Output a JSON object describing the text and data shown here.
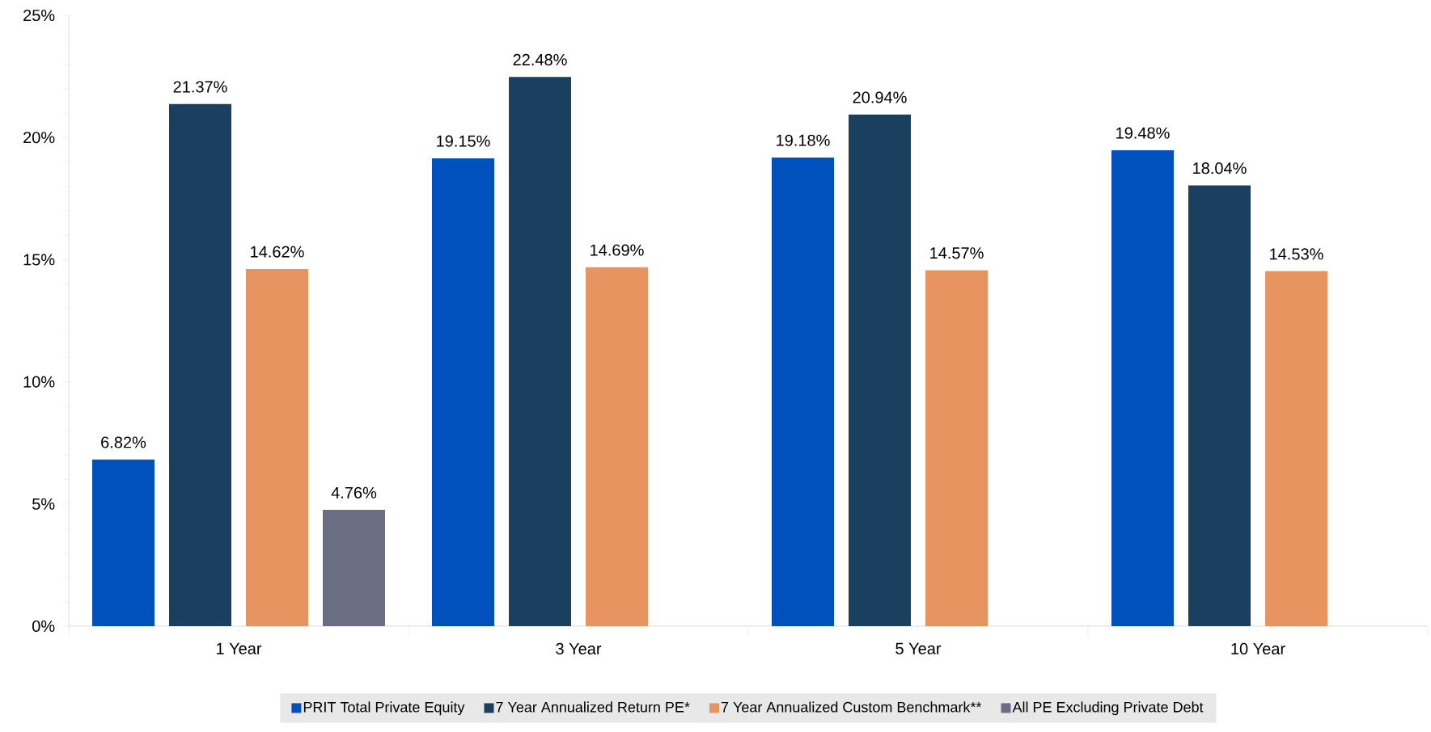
{
  "chart_data": {
    "type": "bar",
    "categories": [
      "1 Year",
      "3 Year",
      "5 Year",
      "10 Year"
    ],
    "series": [
      {
        "name": "PRIT Total Private Equity",
        "color": "#0050be",
        "values": [
          6.82,
          19.15,
          19.18,
          19.48
        ],
        "value_labels": [
          "6.82%",
          "19.15%",
          "19.18%",
          "19.48%"
        ]
      },
      {
        "name": "7 Year Annualized Return PE*",
        "color": "#1a3f5f",
        "values": [
          21.37,
          22.48,
          20.94,
          18.04
        ],
        "value_labels": [
          "21.37%",
          "22.48%",
          "20.94%",
          "18.04%"
        ]
      },
      {
        "name": "7 Year Annualized Custom Benchmark**",
        "color": "#e89461",
        "values": [
          14.62,
          14.69,
          14.57,
          14.53
        ],
        "value_labels": [
          "14.62%",
          "14.69%",
          "14.57%",
          "14.53%"
        ]
      },
      {
        "name": "All PE Excluding Private Debt",
        "color": "#6b6d84",
        "values": [
          4.76,
          null,
          null,
          null
        ],
        "value_labels": [
          "4.76%",
          null,
          null,
          null
        ]
      }
    ],
    "ylim": [
      0,
      25
    ],
    "yticks": [
      {
        "value": 0,
        "label": "0%"
      },
      {
        "value": 5,
        "label": "5%"
      },
      {
        "value": 10,
        "label": "10%"
      },
      {
        "value": 15,
        "label": "15%"
      },
      {
        "value": 20,
        "label": "20%"
      },
      {
        "value": 25,
        "label": "25%"
      }
    ],
    "grid": false,
    "legend": "bottom"
  }
}
